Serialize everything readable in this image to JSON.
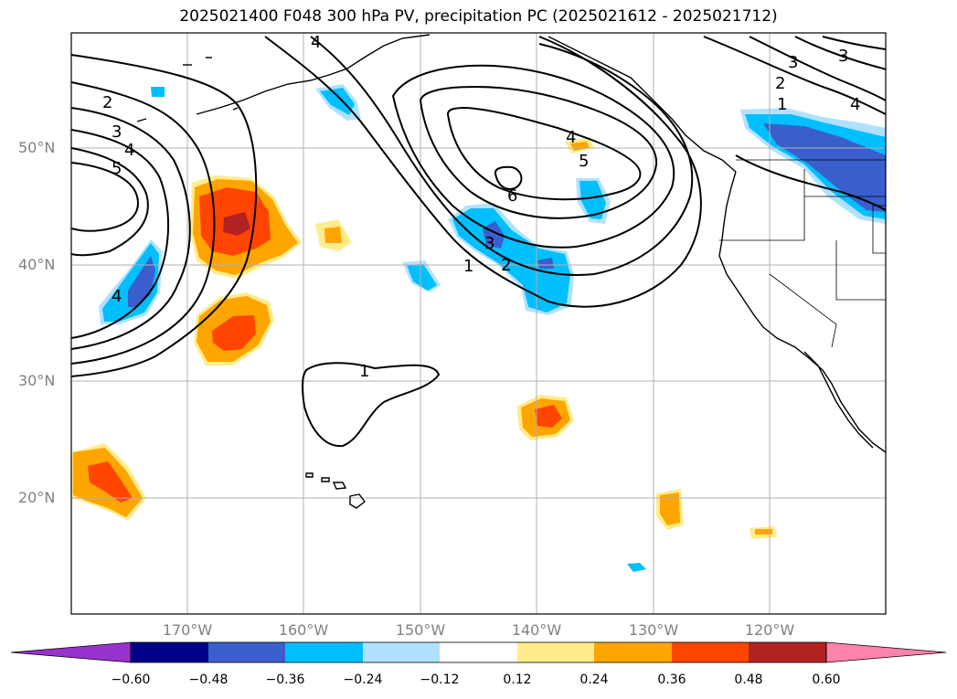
{
  "title": "2025021400 F048 300 hPa PV, precipitation PC (2025021612 - 2025021712)",
  "latitude_labels": [
    "50°N",
    "40°N",
    "30°N",
    "20°N"
  ],
  "longitude_labels": [
    "170°W",
    "160°W",
    "150°W",
    "140°W",
    "130°W",
    "120°W"
  ],
  "pv_contour_labels": [
    "1",
    "2",
    "3",
    "4",
    "5",
    "6"
  ],
  "colorbar": {
    "tick_labels": [
      "−0.60",
      "−0.48",
      "−0.36",
      "−0.24",
      "−0.12",
      "0.12",
      "0.24",
      "0.36",
      "0.48",
      "0.60"
    ],
    "colors": [
      "#9932cc",
      "#00008b",
      "#3a5fcd",
      "#00bfff",
      "#b0e2ff",
      "#ffffff",
      "#ffec8b",
      "#ffa500",
      "#ff4500",
      "#b22222",
      "#ff82ab"
    ]
  },
  "colors": {
    "coast": "#000000",
    "grid": "#b0b0b0",
    "pv_contour": "#000000"
  }
}
